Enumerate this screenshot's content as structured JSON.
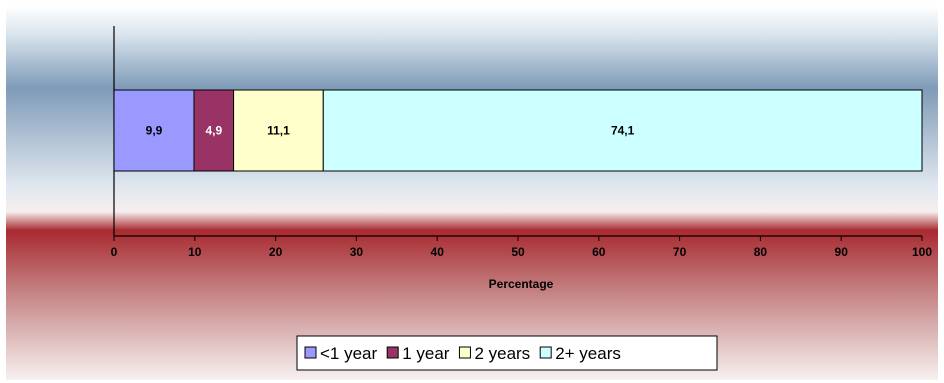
{
  "chart_data": {
    "type": "bar",
    "orientation": "horizontal",
    "stacked": true,
    "title": "",
    "xlabel": "Percentage",
    "ylabel": "",
    "xlim": [
      0,
      100
    ],
    "xticks": [
      "0",
      "10",
      "20",
      "30",
      "40",
      "50",
      "60",
      "70",
      "80",
      "90",
      "100"
    ],
    "grid": false,
    "legend_position": "bottom",
    "series": [
      {
        "name": "<1 year",
        "value": 9.9,
        "label": "9,9",
        "color": "#9999ff",
        "label_color": "#000000"
      },
      {
        "name": "1 year",
        "value": 4.9,
        "label": "4,9",
        "color": "#993366",
        "label_color": "#ffffff"
      },
      {
        "name": "2 years",
        "value": 11.1,
        "label": "11,1",
        "color": "#ffffcc",
        "label_color": "#000000"
      },
      {
        "name": "2+ years",
        "value": 74.1,
        "label": "74,1",
        "color": "#ccffff",
        "label_color": "#000000"
      }
    ]
  }
}
